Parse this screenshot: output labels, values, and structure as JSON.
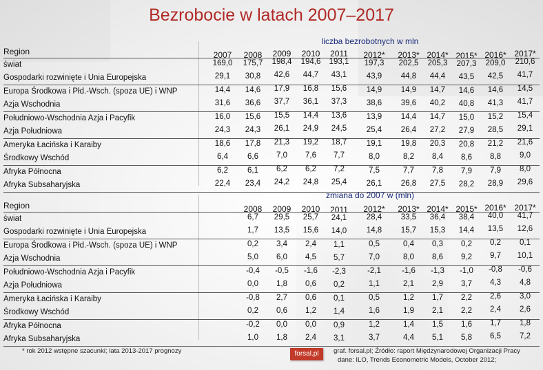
{
  "title": "Bezrobocie w latach 2007–2017",
  "table1": {
    "subtitle": "liczba bezrobotnych w mln",
    "header": "Region",
    "years": [
      "2007",
      "2008",
      "2009",
      "2010",
      "2011",
      "2012*",
      "2013*",
      "2014*",
      "2015*",
      "2016*",
      "2017*"
    ],
    "rows": [
      {
        "region": "świat",
        "values": [
          "169,0",
          "175,7",
          "198,4",
          "194,6",
          "193,1",
          "197,3",
          "202,5",
          "205,3",
          "207,3",
          "209,0",
          "210,6"
        ]
      },
      {
        "region": "Gospodarki rozwinięte i Unia Europejska",
        "values": [
          "29,1",
          "30,8",
          "42,6",
          "44,7",
          "43,1",
          "43,9",
          "44,8",
          "44,4",
          "43,5",
          "42,5",
          "41,7"
        ]
      },
      {
        "region": "Europa Środkowa i Płd.-Wsch. (spoza UE) i WNP",
        "values": [
          "14,4",
          "14,6",
          "17,9",
          "16,8",
          "15,6",
          "14,9",
          "14,9",
          "14,7",
          "14,6",
          "14,6",
          "14,5"
        ]
      },
      {
        "region": "Azja Wschodnia",
        "values": [
          "31,6",
          "36,6",
          "37,7",
          "36,1",
          "37,3",
          "38,6",
          "39,6",
          "40,2",
          "40,8",
          "41,3",
          "41,7"
        ]
      },
      {
        "region": "Południowo-Wschodnia Azja i Pacyfik",
        "values": [
          "16,0",
          "15,6",
          "15,5",
          "14,4",
          "13,6",
          "13,9",
          "14,4",
          "14,7",
          "15,0",
          "15,2",
          "15,4"
        ]
      },
      {
        "region": "Azja Południowa",
        "values": [
          "24,3",
          "24,3",
          "26,1",
          "24,9",
          "24,5",
          "25,4",
          "26,4",
          "27,2",
          "27,9",
          "28,5",
          "29,1"
        ]
      },
      {
        "region": "Ameryka Łacińska i Karaiby",
        "values": [
          "18,6",
          "17,8",
          "21,3",
          "19,2",
          "18,7",
          "19,1",
          "19,8",
          "20,3",
          "20,8",
          "21,2",
          "21,6"
        ]
      },
      {
        "region": "Środkowy Wschód",
        "values": [
          "6,4",
          "6,6",
          "7,0",
          "7,6",
          "7,7",
          "8,0",
          "8,2",
          "8,4",
          "8,6",
          "8,8",
          "9,0"
        ]
      },
      {
        "region": "Afryka Północna",
        "values": [
          "6,2",
          "6,1",
          "6,2",
          "6,2",
          "7,2",
          "7,5",
          "7,7",
          "7,8",
          "7,9",
          "7,9",
          "8,0"
        ]
      },
      {
        "region": "Afryka Subsaharyjska",
        "values": [
          "22,4",
          "23,4",
          "24,2",
          "24,8",
          "25,4",
          "26,1",
          "26,8",
          "27,5",
          "28,2",
          "28,9",
          "29,6"
        ]
      }
    ]
  },
  "table2": {
    "subtitle": "zmiana do 2007 w (mln)",
    "header": "Region",
    "years": [
      "2008",
      "2009",
      "2010",
      "2011",
      "2012*",
      "2013*",
      "2014*",
      "2015*",
      "2016*",
      "2017*"
    ],
    "rows": [
      {
        "region": "świat",
        "values": [
          "6,7",
          "29,5",
          "25,7",
          "24,1",
          "28,4",
          "33,5",
          "36,4",
          "38,4",
          "40,0",
          "41,7"
        ]
      },
      {
        "region": "Gospodarki rozwinięte i Unia Europejska",
        "values": [
          "1,7",
          "13,5",
          "15,6",
          "14,0",
          "14,8",
          "15,7",
          "15,3",
          "14,4",
          "13,5",
          "12,6"
        ]
      },
      {
        "region": "Europa Środkowa i Płd.-Wsch. (spoza UE) i WNP",
        "values": [
          "0,2",
          "3,4",
          "2,4",
          "1,1",
          "0,5",
          "0,4",
          "0,3",
          "0,2",
          "0,2",
          "0,1"
        ]
      },
      {
        "region": "Azja Wschodnia",
        "values": [
          "5,0",
          "6,0",
          "4,5",
          "5,7",
          "7,0",
          "8,0",
          "8,6",
          "9,2",
          "9,7",
          "10,1"
        ]
      },
      {
        "region": "Południowo-Wschodnia Azja i Pacyfik",
        "values": [
          "-0,4",
          "-0,5",
          "-1,6",
          "-2,3",
          "-2,1",
          "-1,6",
          "-1,3",
          "-1,0",
          "-0,8",
          "-0,6"
        ]
      },
      {
        "region": "Azja Południowa",
        "values": [
          "0,0",
          "1,8",
          "0,6",
          "0,2",
          "1,1",
          "2,1",
          "2,9",
          "3,7",
          "4,3",
          "4,8"
        ]
      },
      {
        "region": "Ameryka Łacińska i Karaiby",
        "values": [
          "-0,8",
          "2,7",
          "0,6",
          "0,1",
          "0,5",
          "1,2",
          "1,7",
          "2,2",
          "2,6",
          "3,0"
        ]
      },
      {
        "region": "Środkowy Wschód",
        "values": [
          "0,2",
          "0,6",
          "1,2",
          "1,4",
          "1,6",
          "1,9",
          "2,1",
          "2,2",
          "2,4",
          "2,6"
        ]
      },
      {
        "region": "Afryka Północna",
        "values": [
          "-0,2",
          "0,0",
          "0,0",
          "0,9",
          "1,2",
          "1,4",
          "1,5",
          "1,6",
          "1,7",
          "1,8"
        ]
      },
      {
        "region": "Afryka Subsaharyjska",
        "values": [
          "1,0",
          "1,8",
          "2,4",
          "3,1",
          "3,7",
          "4,4",
          "5,1",
          "5,8",
          "6,5",
          "7,2"
        ]
      }
    ]
  },
  "footnote": "* rok 2012 wstępne szacunki; lata 2013-2017 prognozy",
  "logo": "forsal.pl",
  "source": [
    "graf. forsal.pl; Źródło: raport Międzynarodowej Organizacji Pracy",
    "dane: ILO, Trends Econometric Models, October 2012;"
  ],
  "colors": {
    "title": "#b02a26",
    "subtitle": "#1a2a7a",
    "logo": "#c23a2a"
  }
}
